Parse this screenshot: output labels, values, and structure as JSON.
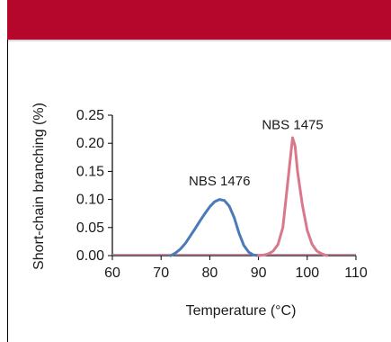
{
  "header": {
    "color": "#b5072b"
  },
  "chart_data": {
    "type": "line",
    "xlabel": "Temperature (°C)",
    "ylabel": "Short-chain branching (%)",
    "xlim": [
      60,
      110
    ],
    "ylim": [
      0,
      0.25
    ],
    "x_ticks": [
      "60",
      "70",
      "80",
      "90",
      "100",
      "110"
    ],
    "y_ticks": [
      "0.00",
      "0.05",
      "0.10",
      "0.15",
      "0.20",
      "0.25"
    ],
    "grid": false,
    "series": [
      {
        "name": "NBS 1476",
        "color": "#4a7ab8",
        "points": [
          [
            72,
            0.0
          ],
          [
            73,
            0.005
          ],
          [
            74,
            0.012
          ],
          [
            75,
            0.022
          ],
          [
            76,
            0.035
          ],
          [
            77,
            0.048
          ],
          [
            78,
            0.062
          ],
          [
            79,
            0.075
          ],
          [
            80,
            0.087
          ],
          [
            81,
            0.096
          ],
          [
            82,
            0.1
          ],
          [
            83,
            0.098
          ],
          [
            84,
            0.088
          ],
          [
            85,
            0.068
          ],
          [
            86,
            0.04
          ],
          [
            87,
            0.018
          ],
          [
            88,
            0.006
          ],
          [
            89,
            0.001
          ],
          [
            90,
            0.0
          ]
        ]
      },
      {
        "name": "NBS 1475",
        "color": "#d9788a",
        "points": [
          [
            90,
            0.0
          ],
          [
            91,
            0.001
          ],
          [
            92,
            0.003
          ],
          [
            93,
            0.008
          ],
          [
            94,
            0.02
          ],
          [
            95,
            0.05
          ],
          [
            96,
            0.13
          ],
          [
            97,
            0.21
          ],
          [
            97.5,
            0.195
          ],
          [
            98,
            0.15
          ],
          [
            99,
            0.09
          ],
          [
            100,
            0.045
          ],
          [
            101,
            0.02
          ],
          [
            102,
            0.008
          ],
          [
            103,
            0.003
          ],
          [
            104,
            0.0
          ]
        ]
      }
    ],
    "annotations": [
      {
        "text": "NBS 1476",
        "x": 82,
        "y": 0.125
      },
      {
        "text": "NBS 1475",
        "x": 97,
        "y": 0.225
      }
    ]
  }
}
